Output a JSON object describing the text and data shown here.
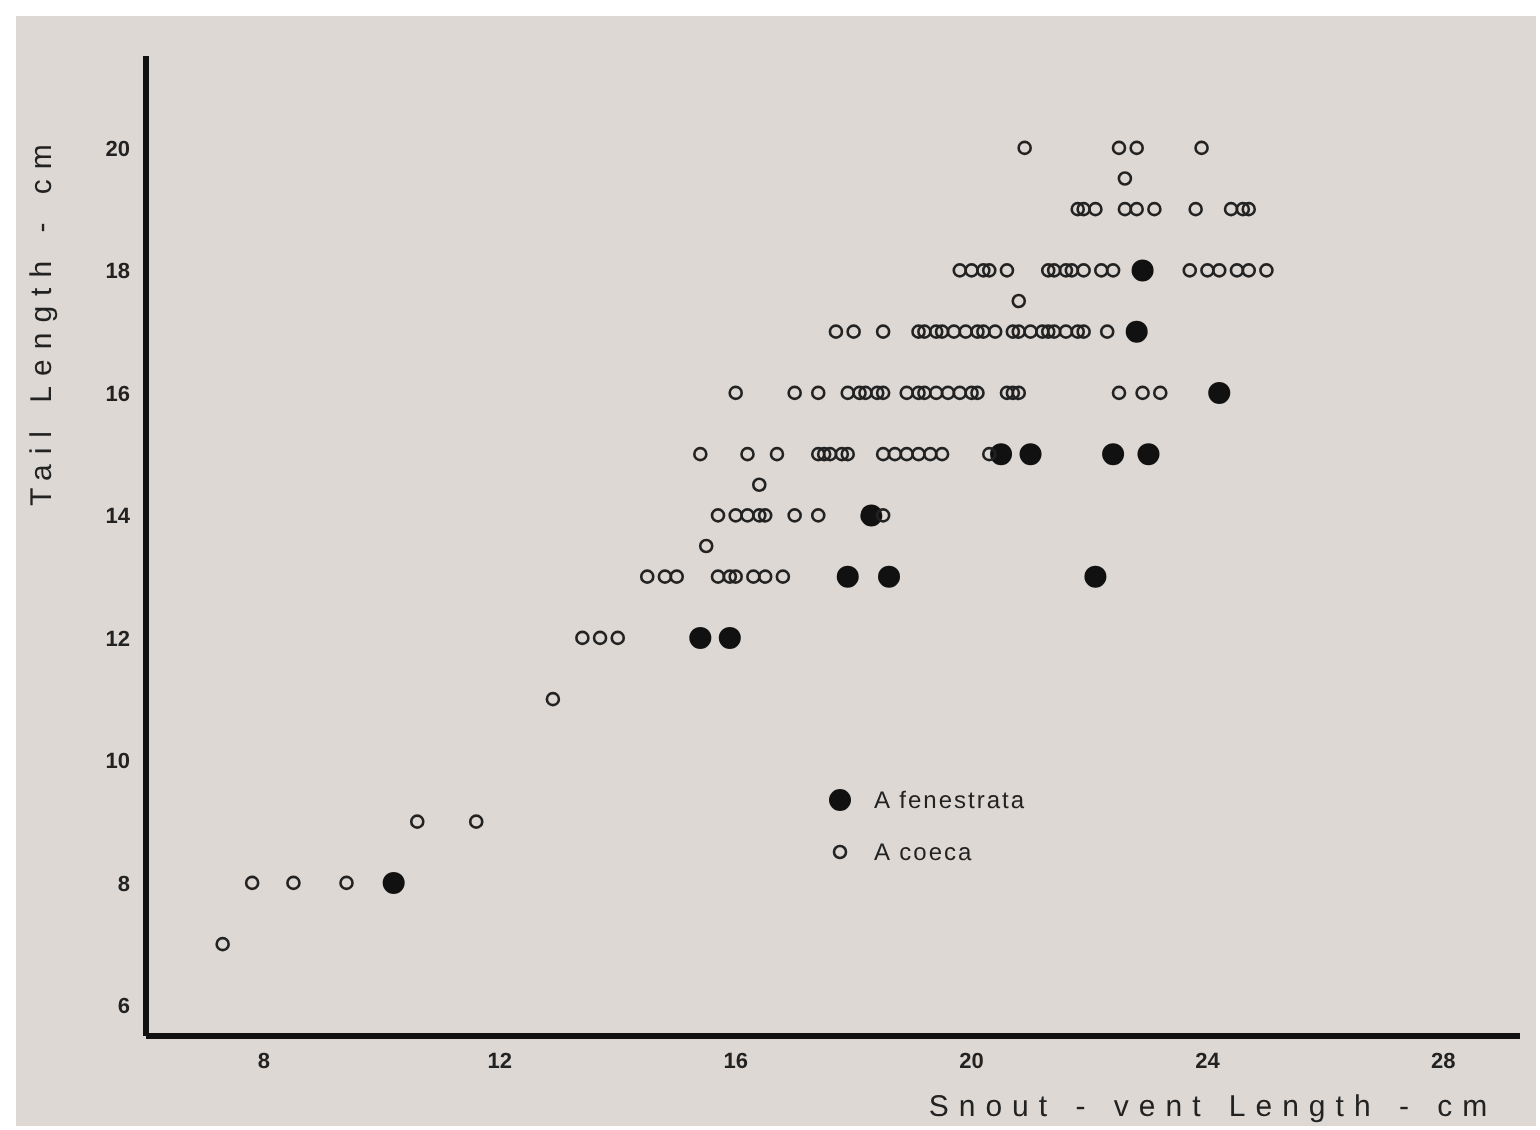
{
  "chart_data": {
    "type": "scatter",
    "xlabel": "Snout - vent Length - cm",
    "ylabel": "Tail Length - cm",
    "xlim": [
      6,
      29.3
    ],
    "ylim": [
      5.5,
      21.5
    ],
    "xticks": [
      8,
      12,
      16,
      20,
      24,
      28
    ],
    "yticks": [
      6,
      8,
      10,
      12,
      14,
      16,
      18,
      20
    ],
    "grid": false,
    "legend": "bottom",
    "marker": "circle",
    "series": [
      {
        "name": "A fenestrata",
        "color": "#111111",
        "x": [
          10.2,
          15.4,
          15.9,
          17.9,
          18.6,
          18.3,
          20.5,
          21.0,
          22.4,
          23.0,
          22.1,
          24.2,
          22.8,
          22.9
        ],
        "values": [
          8,
          12,
          12,
          13,
          13,
          14,
          15,
          15,
          15,
          15,
          13,
          16,
          17,
          18
        ]
      },
      {
        "name": "A coeca",
        "color": "#222222",
        "x": [
          7.3,
          7.8,
          8.5,
          9.4,
          10.6,
          11.6,
          12.9,
          13.4,
          13.7,
          14.0,
          14.5,
          14.8,
          15.0,
          15.7,
          15.9,
          16.0,
          16.3,
          16.5,
          16.8,
          15.5,
          15.7,
          16.0,
          16.2,
          16.4,
          16.5,
          17.0,
          17.4,
          18.5,
          16.4,
          15.4,
          16.2,
          16.7,
          17.4,
          17.5,
          17.6,
          17.8,
          17.9,
          18.5,
          18.7,
          18.9,
          19.1,
          19.3,
          19.5,
          20.3,
          16.0,
          17.0,
          17.4,
          17.9,
          18.1,
          18.2,
          18.4,
          18.5,
          18.9,
          19.1,
          19.2,
          19.4,
          19.6,
          19.8,
          20.0,
          20.1,
          20.6,
          20.7,
          20.8,
          22.5,
          22.9,
          23.2,
          17.7,
          18.0,
          18.5,
          19.1,
          19.2,
          19.4,
          19.5,
          19.7,
          19.9,
          20.1,
          20.2,
          20.4,
          20.7,
          20.8,
          21.0,
          21.2,
          21.3,
          21.4,
          21.6,
          21.8,
          21.9,
          22.3,
          20.8,
          19.8,
          20.0,
          20.2,
          20.3,
          20.6,
          21.3,
          21.4,
          21.6,
          21.7,
          21.9,
          22.2,
          22.4,
          23.7,
          24.0,
          24.2,
          24.5,
          24.7,
          25.0,
          21.8,
          21.9,
          22.1,
          22.6,
          22.8,
          23.1,
          23.8,
          24.4,
          24.6,
          24.7,
          22.6,
          20.9,
          22.5,
          22.8,
          23.9
        ],
        "values": [
          7,
          8,
          8,
          8,
          9,
          9,
          11,
          12,
          12,
          12,
          13,
          13,
          13,
          13,
          13,
          13,
          13,
          13,
          13,
          13.5,
          14,
          14,
          14,
          14,
          14,
          14,
          14,
          14,
          14.5,
          15,
          15,
          15,
          15,
          15,
          15,
          15,
          15,
          15,
          15,
          15,
          15,
          15,
          15,
          15,
          16,
          16,
          16,
          16,
          16,
          16,
          16,
          16,
          16,
          16,
          16,
          16,
          16,
          16,
          16,
          16,
          16,
          16,
          16,
          16,
          16,
          16,
          17,
          17,
          17,
          17,
          17,
          17,
          17,
          17,
          17,
          17,
          17,
          17,
          17,
          17,
          17,
          17,
          17,
          17,
          17,
          17,
          17,
          17,
          17.5,
          18,
          18,
          18,
          18,
          18,
          18,
          18,
          18,
          18,
          18,
          18,
          18,
          18,
          18,
          18,
          18,
          18,
          18,
          19,
          19,
          19,
          19,
          19,
          19,
          19,
          19,
          19,
          19,
          19.5,
          20,
          20,
          20,
          20
        ]
      }
    ]
  }
}
